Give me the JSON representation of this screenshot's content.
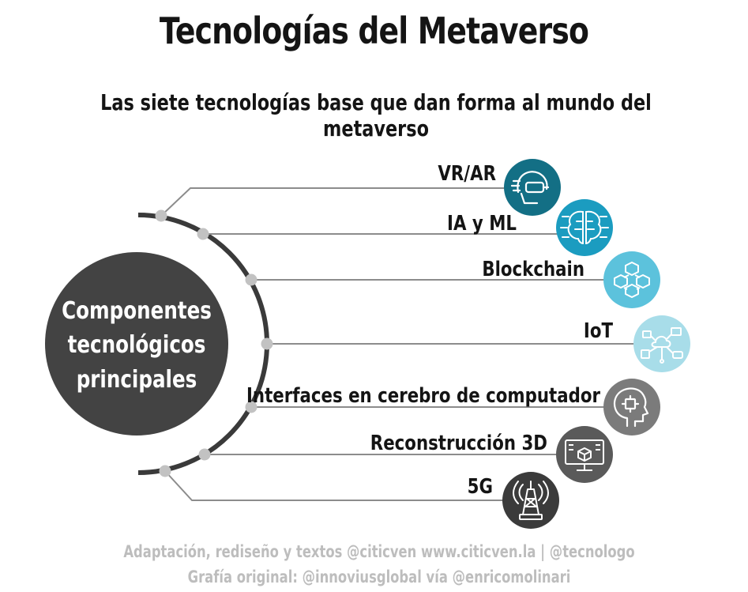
{
  "title": "Tecnologías del Metaverso",
  "subtitle": "Las siete tecnologías base que dan forma al mundo del metaverso",
  "center": {
    "lines": [
      "Componentes",
      "tecnológicos",
      "principales"
    ]
  },
  "technologies": [
    {
      "label": "VR/AR",
      "icon": "vr-headset-icon",
      "color": "#136f85"
    },
    {
      "label": "IA y ML",
      "icon": "ai-brain-circuit-icon",
      "color": "#1b9cc0"
    },
    {
      "label": "Blockchain",
      "icon": "blockchain-cubes-icon",
      "color": "#5cc2dc"
    },
    {
      "label": "IoT",
      "icon": "iot-network-icon",
      "color": "#a8dde9"
    },
    {
      "label": "Interfaces en cerebro de computador",
      "icon": "brain-computer-interface-icon",
      "color": "#7b7b7b"
    },
    {
      "label": "Reconstrucción 3D",
      "icon": "3d-monitor-icon",
      "color": "#5a5a5a"
    },
    {
      "label": "5G",
      "icon": "antenna-tower-icon",
      "color": "#3b3b3b"
    }
  ],
  "footer": {
    "line1": "Adaptación, rediseño y textos @citicven www.citicven.la | @tecnologo",
    "line2": "Grafía original: @innoviusglobal vía @enricomolinari"
  }
}
